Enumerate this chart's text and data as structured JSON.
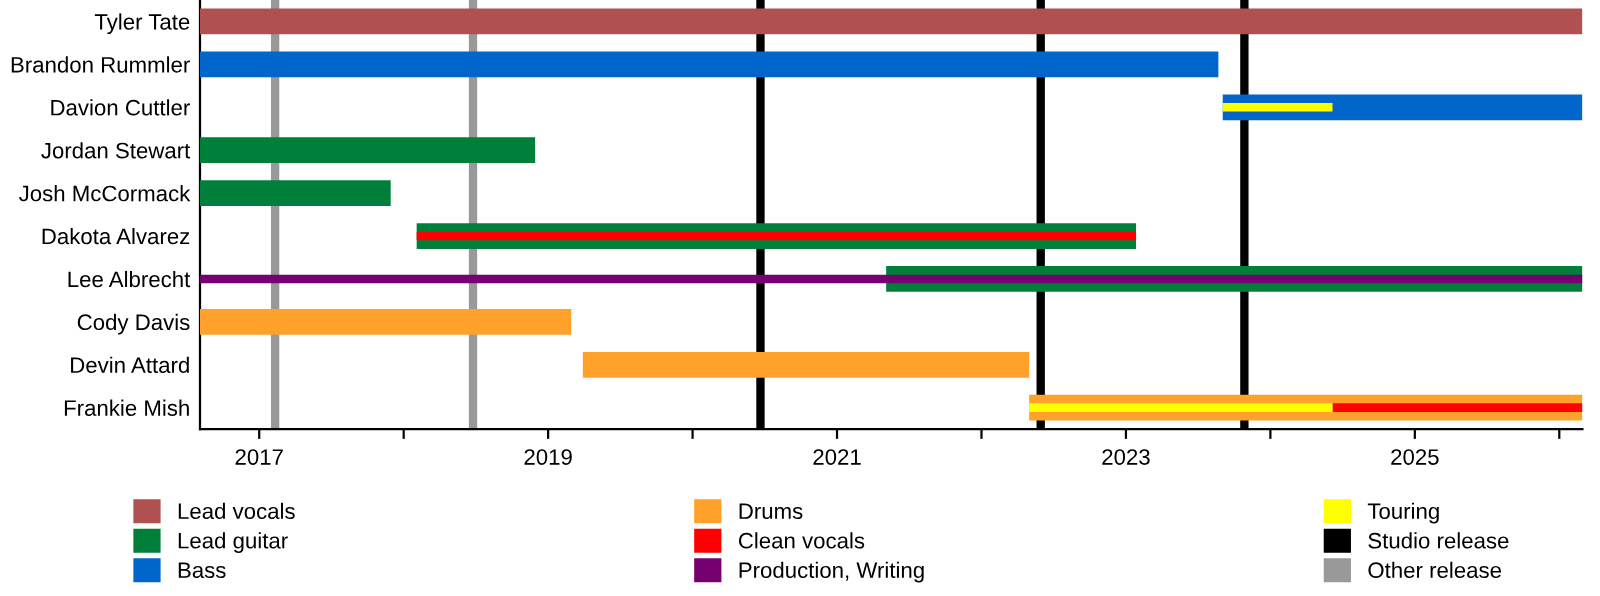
{
  "chart_data": {
    "type": "bar",
    "orientation": "horizontal",
    "legend": "bottom",
    "grid": false,
    "categories": [
      "Tyler Tate",
      "Brandon Rummler",
      "Davion Cuttler",
      "Jordan Stewart",
      "Josh McCormack",
      "Dakota Alvarez",
      "Lee Albrecht",
      "Cody Davis",
      "Devin Attard",
      "Frankie Mish"
    ],
    "series": [
      {
        "name": "Lead vocals",
        "color": "#b05050",
        "base": [
          2016.59,
          null,
          null,
          null,
          null,
          null,
          null,
          null,
          null,
          null
        ],
        "values": [
          9.57,
          null,
          null,
          null,
          null,
          null,
          null,
          null,
          null,
          null
        ]
      },
      {
        "name": "Lead guitar",
        "color": "#007f3a",
        "base": [
          null,
          null,
          null,
          2016.59,
          2016.59,
          2018.09,
          2021.34,
          null,
          null,
          null
        ],
        "values": [
          null,
          null,
          null,
          2.32,
          1.32,
          4.98,
          4.82,
          null,
          null,
          null
        ]
      },
      {
        "name": "Bass",
        "color": "#0066cc",
        "base": [
          null,
          2016.59,
          2023.67,
          null,
          null,
          null,
          null,
          null,
          null,
          null
        ],
        "values": [
          null,
          7.05,
          2.49,
          null,
          null,
          null,
          null,
          null,
          null,
          null
        ]
      },
      {
        "name": "Drums",
        "color": "#ffa12a",
        "base": [
          null,
          null,
          null,
          null,
          null,
          null,
          null,
          2016.59,
          2019.24,
          2022.33
        ],
        "values": [
          null,
          null,
          null,
          null,
          null,
          null,
          null,
          2.57,
          3.09,
          3.83
        ]
      },
      {
        "name": "Clean vocals",
        "color": "#ff0000",
        "base": [
          null,
          null,
          null,
          null,
          null,
          2018.09,
          null,
          null,
          null,
          2024.43
        ],
        "values": [
          null,
          null,
          null,
          null,
          null,
          4.98,
          null,
          null,
          null,
          1.73
        ]
      },
      {
        "name": "Production, Writing",
        "color": "#75006f",
        "base": [
          null,
          null,
          null,
          null,
          null,
          null,
          2016.59,
          null,
          null,
          null
        ],
        "values": [
          null,
          null,
          null,
          null,
          null,
          null,
          9.57,
          null,
          null,
          null
        ]
      },
      {
        "name": "Touring",
        "color": "#ffff00",
        "base": [
          null,
          null,
          2023.67,
          null,
          null,
          null,
          null,
          null,
          null,
          2022.33
        ],
        "values": [
          null,
          null,
          0.76,
          null,
          null,
          null,
          null,
          null,
          null,
          2.1
        ]
      }
    ],
    "ref_lines": [
      {
        "axis": "x",
        "value": 2020.47,
        "label": "Studio release",
        "color": "#000000"
      },
      {
        "axis": "x",
        "value": 2022.41,
        "color": "#000000"
      },
      {
        "axis": "x",
        "value": 2023.82,
        "color": "#000000"
      },
      {
        "axis": "x",
        "value": 2017.11,
        "label": "Other release",
        "color": "#999999"
      },
      {
        "axis": "x",
        "value": 2018.48,
        "color": "#999999"
      }
    ],
    "xlim": [
      2016.59,
      2026.16
    ],
    "xticks": [
      2017,
      {
        "value": 2018,
        "label": null
      },
      2019,
      {
        "value": 2020,
        "label": null
      },
      2021,
      {
        "value": 2022,
        "label": null
      },
      2023,
      {
        "value": 2024,
        "label": null
      },
      2025,
      {
        "value": 2026,
        "label": null
      }
    ]
  }
}
